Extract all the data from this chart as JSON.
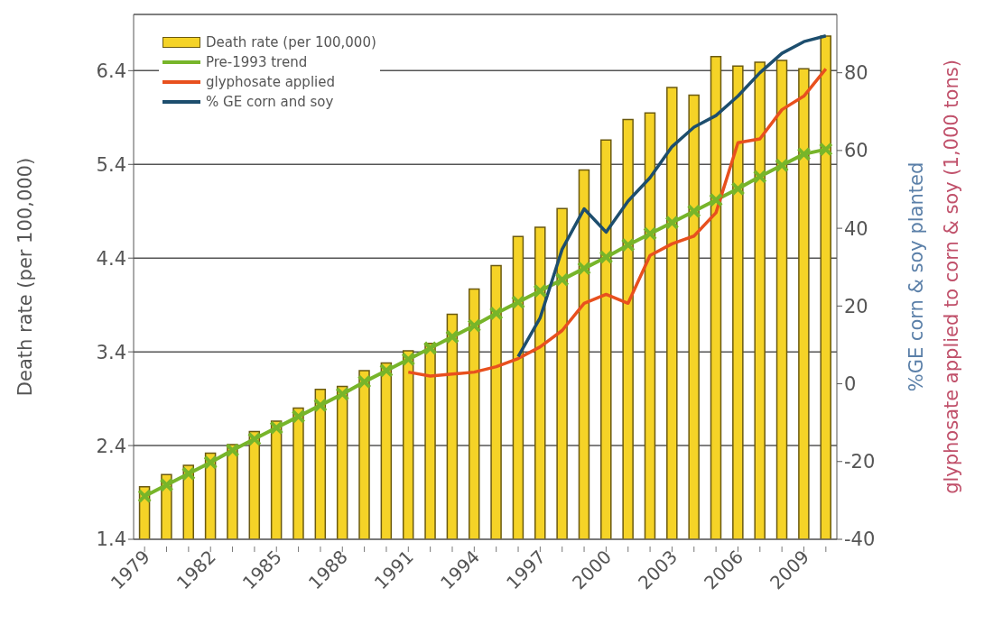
{
  "chart_data": {
    "type": "bar",
    "ylabel": "Death rate (per 100,000)",
    "y2label": "%GE corn & soy planted",
    "y3label": "glyphosate applied to corn & soy (1,000 tons)",
    "categories": [
      "1979",
      null,
      null,
      "1982",
      null,
      null,
      "1985",
      null,
      null,
      "1988",
      null,
      null,
      "1991",
      null,
      null,
      "1994",
      null,
      null,
      "1997",
      null,
      null,
      "2000",
      null,
      null,
      "2003",
      null,
      null,
      "2006",
      null,
      null,
      "2009",
      null
    ],
    "series": [
      {
        "name": "Death rate (per 100,000)",
        "color": "#f5d327",
        "values": [
          1.96,
          2.09,
          2.19,
          2.32,
          2.41,
          2.55,
          2.66,
          2.8,
          3.0,
          3.03,
          3.2,
          3.28,
          3.41,
          3.49,
          3.8,
          4.07,
          4.32,
          4.63,
          4.73,
          4.93,
          5.34,
          5.66,
          5.88,
          5.95,
          6.22,
          6.14,
          6.55,
          6.45,
          6.49,
          6.51,
          6.42,
          6.77
        ]
      },
      {
        "name": "Pre-1993 trend",
        "type": "line",
        "color": "#77b52a",
        "marker": "cross",
        "values": [
          1.86,
          1.98,
          2.1,
          2.22,
          2.35,
          2.47,
          2.59,
          2.71,
          2.83,
          2.95,
          3.08,
          3.2,
          3.32,
          3.44,
          3.56,
          3.68,
          3.81,
          3.93,
          4.05,
          4.17,
          4.29,
          4.41,
          4.54,
          4.66,
          4.78,
          4.9,
          5.02,
          5.14,
          5.27,
          5.39,
          5.51,
          5.56
        ]
      },
      {
        "name": "glyphosate applied",
        "type": "line",
        "axis": "y2",
        "color": "#e8501e",
        "values": [
          null,
          null,
          null,
          null,
          null,
          null,
          null,
          null,
          null,
          null,
          null,
          null,
          3,
          2,
          2.5,
          3,
          4.4,
          6.5,
          9.5,
          13.7,
          20.7,
          23,
          20.7,
          33,
          36,
          38,
          44,
          62,
          63,
          70.5,
          74,
          81
        ]
      },
      {
        "name": "% GE corn and soy",
        "type": "line",
        "axis": "y2",
        "color": "#1d4e6e",
        "values": [
          null,
          null,
          null,
          null,
          null,
          null,
          null,
          null,
          null,
          null,
          null,
          null,
          null,
          null,
          null,
          null,
          null,
          7,
          17,
          34.6,
          45,
          39,
          47,
          53,
          61,
          66,
          69,
          74,
          80,
          85,
          88,
          89.5
        ]
      }
    ],
    "ylim": [
      1.4,
      7.0
    ],
    "yticks": [
      1.4,
      2.4,
      3.4,
      4.4,
      5.4,
      6.4
    ],
    "y2lim": [
      -40,
      95
    ],
    "y2ticks": [
      -40,
      -20,
      0,
      20,
      40,
      60,
      80
    ],
    "grid": "y",
    "legend": "top left"
  }
}
